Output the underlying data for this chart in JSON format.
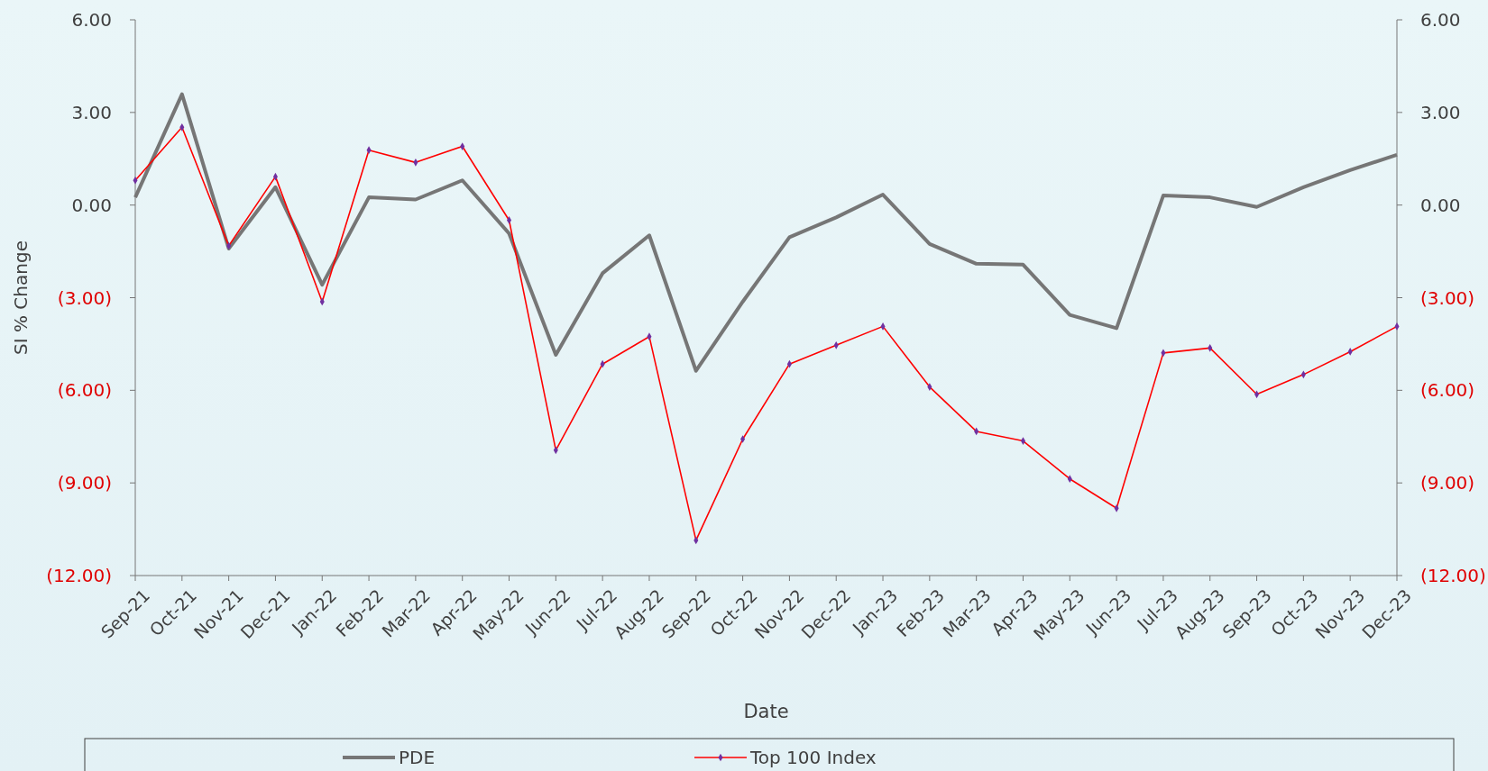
{
  "chart_data": {
    "type": "line",
    "xlabel": "Date",
    "ylabel": "SI % Change",
    "categories": [
      "Sep-21",
      "Oct-21",
      "Nov-21",
      "Dec-21",
      "Jan-22",
      "Feb-22",
      "Mar-22",
      "Apr-22",
      "May-22",
      "Jun-22",
      "Jul-22",
      "Aug-22",
      "Sep-22",
      "Oct-22",
      "Nov-22",
      "Dec-22",
      "Jan-23",
      "Feb-23",
      "Mar-23",
      "Apr-23",
      "May-23",
      "Jun-23",
      "Jul-23",
      "Aug-23",
      "Sep-23",
      "Oct-23",
      "Nov-23",
      "Dec-23"
    ],
    "series": [
      {
        "name": "PDE",
        "color": "#767676",
        "marker": "none",
        "values": [
          0.25,
          3.59,
          -1.41,
          0.58,
          -2.58,
          0.25,
          0.18,
          0.8,
          -0.92,
          -4.85,
          -2.21,
          -0.98,
          -5.37,
          -3.13,
          -1.04,
          -0.4,
          0.34,
          -1.26,
          -1.9,
          -1.93,
          -3.56,
          -3.99,
          0.31,
          0.25,
          -0.06,
          0.58,
          1.13,
          1.63
        ]
      },
      {
        "name": "Top 100 Index",
        "color": "#ff0000",
        "marker": "diamond",
        "values": [
          0.8,
          2.52,
          -1.32,
          0.92,
          -3.13,
          1.78,
          1.38,
          1.9,
          -0.49,
          -7.94,
          -5.15,
          -4.26,
          -10.86,
          -7.58,
          -5.15,
          -4.54,
          -3.93,
          -5.89,
          -7.33,
          -7.64,
          -8.87,
          -9.82,
          -4.79,
          -4.63,
          -6.13,
          -5.49,
          -4.75,
          -3.93
        ]
      }
    ],
    "ylim": [
      -12,
      6
    ],
    "yticks": [
      {
        "value": 6,
        "label": "6.00"
      },
      {
        "value": 3,
        "label": "3.00"
      },
      {
        "value": 0,
        "label": "0.00"
      },
      {
        "value": -3,
        "label": "(3.00)"
      },
      {
        "value": -6,
        "label": "(6.00)"
      },
      {
        "value": -9,
        "label": "(9.00)"
      },
      {
        "value": -12,
        "label": "(12.00)"
      }
    ],
    "y2lim": [
      -12,
      6
    ],
    "y2ticks": [
      {
        "value": 6,
        "label": "6.00"
      },
      {
        "value": 3,
        "label": "3.00"
      },
      {
        "value": 0,
        "label": "0.00"
      },
      {
        "value": -3,
        "label": "(3.00)"
      },
      {
        "value": -6,
        "label": "(6.00)"
      },
      {
        "value": -9,
        "label": "(9.00)"
      },
      {
        "value": -12,
        "label": "(12.00)"
      }
    ],
    "grid": false,
    "legend": "bottom",
    "line_style": "solid"
  }
}
